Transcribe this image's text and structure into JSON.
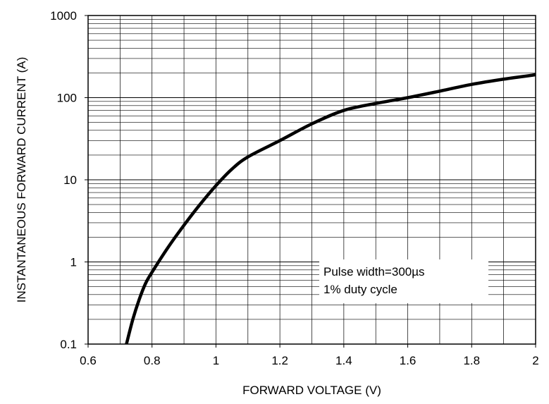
{
  "chart_data": {
    "type": "line",
    "title": "",
    "xlabel": "FORWARD VOLTAGE (V)",
    "ylabel": "INSTANTANEOUS FORWARD CURRENT (A)",
    "xlim": [
      0.6,
      2.0
    ],
    "ylim": [
      0.1,
      1000
    ],
    "yscale": "log",
    "grid": true,
    "x_ticks": [
      "0.6",
      "0.8",
      "1",
      "1.2",
      "1.4",
      "1.6",
      "1.8",
      "2"
    ],
    "y_ticks": [
      "0.1",
      "1",
      "10",
      "100",
      "1000"
    ],
    "annotation": [
      "Pulse width=300µs",
      "1% duty cycle"
    ],
    "series": [
      {
        "x": [
          0.72,
          0.74,
          0.76,
          0.78,
          0.8,
          0.85,
          0.9,
          0.95,
          1.0,
          1.05,
          1.1,
          1.2,
          1.3,
          1.4,
          1.5,
          1.6,
          1.7,
          1.8,
          1.9,
          2.0
        ],
        "y": [
          0.1,
          0.2,
          0.35,
          0.55,
          0.75,
          1.5,
          2.8,
          5.0,
          8.5,
          13.5,
          19,
          30,
          48,
          70,
          85,
          100,
          120,
          145,
          168,
          190
        ]
      }
    ]
  }
}
